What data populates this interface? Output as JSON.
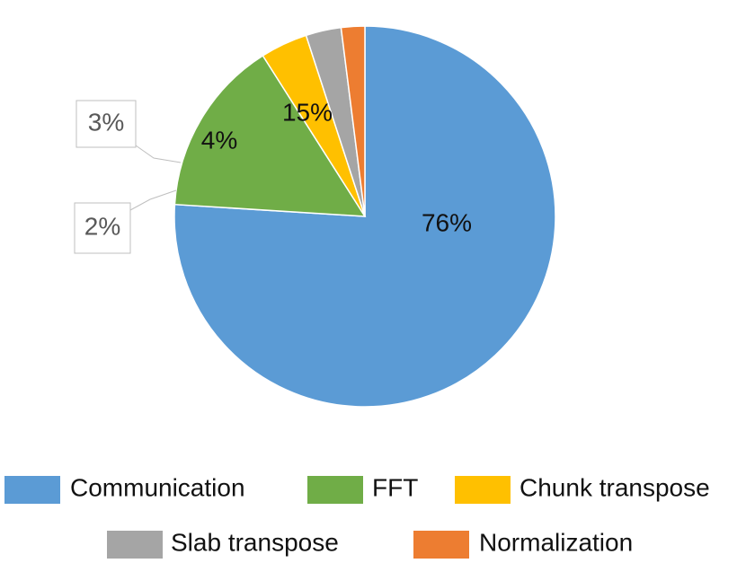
{
  "chart_data": {
    "type": "pie",
    "title": "",
    "legend_position": "bottom",
    "slices": [
      {
        "name": "Communication",
        "value": 76,
        "label": "76%",
        "color": "#5B9BD5"
      },
      {
        "name": "FFT",
        "value": 15,
        "label": "15%",
        "color": "#70AD47"
      },
      {
        "name": "Chunk transpose",
        "value": 4,
        "label": "4%",
        "color": "#FFC000"
      },
      {
        "name": "Slab transpose",
        "value": 3,
        "label": "3%",
        "color": "#A5A5A5"
      },
      {
        "name": "Normalization",
        "value": 2,
        "label": "2%",
        "color": "#ED7D31"
      }
    ],
    "start_angle_deg": 0,
    "direction": "clockwise"
  }
}
